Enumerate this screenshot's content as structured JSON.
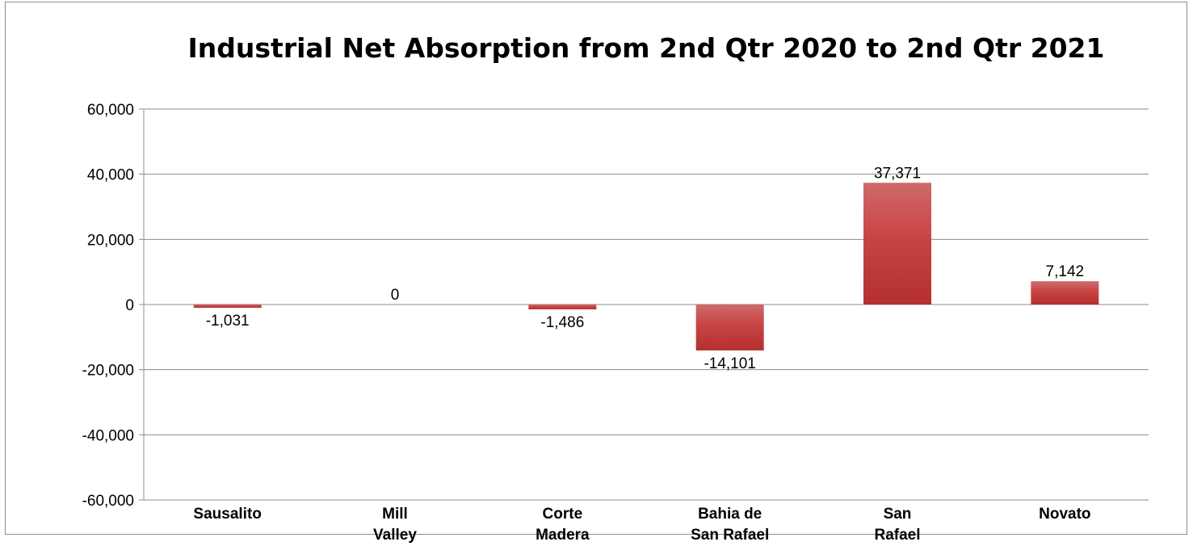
{
  "chart_data": {
    "type": "bar",
    "title": "Industrial Net Absorption from 2nd Qtr 2020 to 2nd Qtr 2021",
    "xlabel": "",
    "ylabel": "",
    "categories": [
      [
        "Sausalito"
      ],
      [
        "Mill",
        "Valley"
      ],
      [
        "Corte",
        "Madera"
      ],
      [
        "Bahia de",
        "San Rafael"
      ],
      [
        "San",
        "Rafael"
      ],
      [
        "Novato"
      ]
    ],
    "values": [
      -1031,
      0,
      -1486,
      -14101,
      37371,
      7142
    ],
    "value_labels": [
      "-1,031",
      "0",
      "-1,486",
      "-14,101",
      "37,371",
      "7,142"
    ],
    "ylim": [
      -60000,
      60000
    ],
    "yticks": [
      60000,
      40000,
      20000,
      0,
      -20000,
      -40000,
      -60000
    ],
    "ytick_labels": [
      "60,000",
      "40,000",
      "20,000",
      "0",
      "-20,000",
      "-40,000",
      "-60,000"
    ],
    "grid": true,
    "legend": "none",
    "bar_color": "#c0393b"
  }
}
